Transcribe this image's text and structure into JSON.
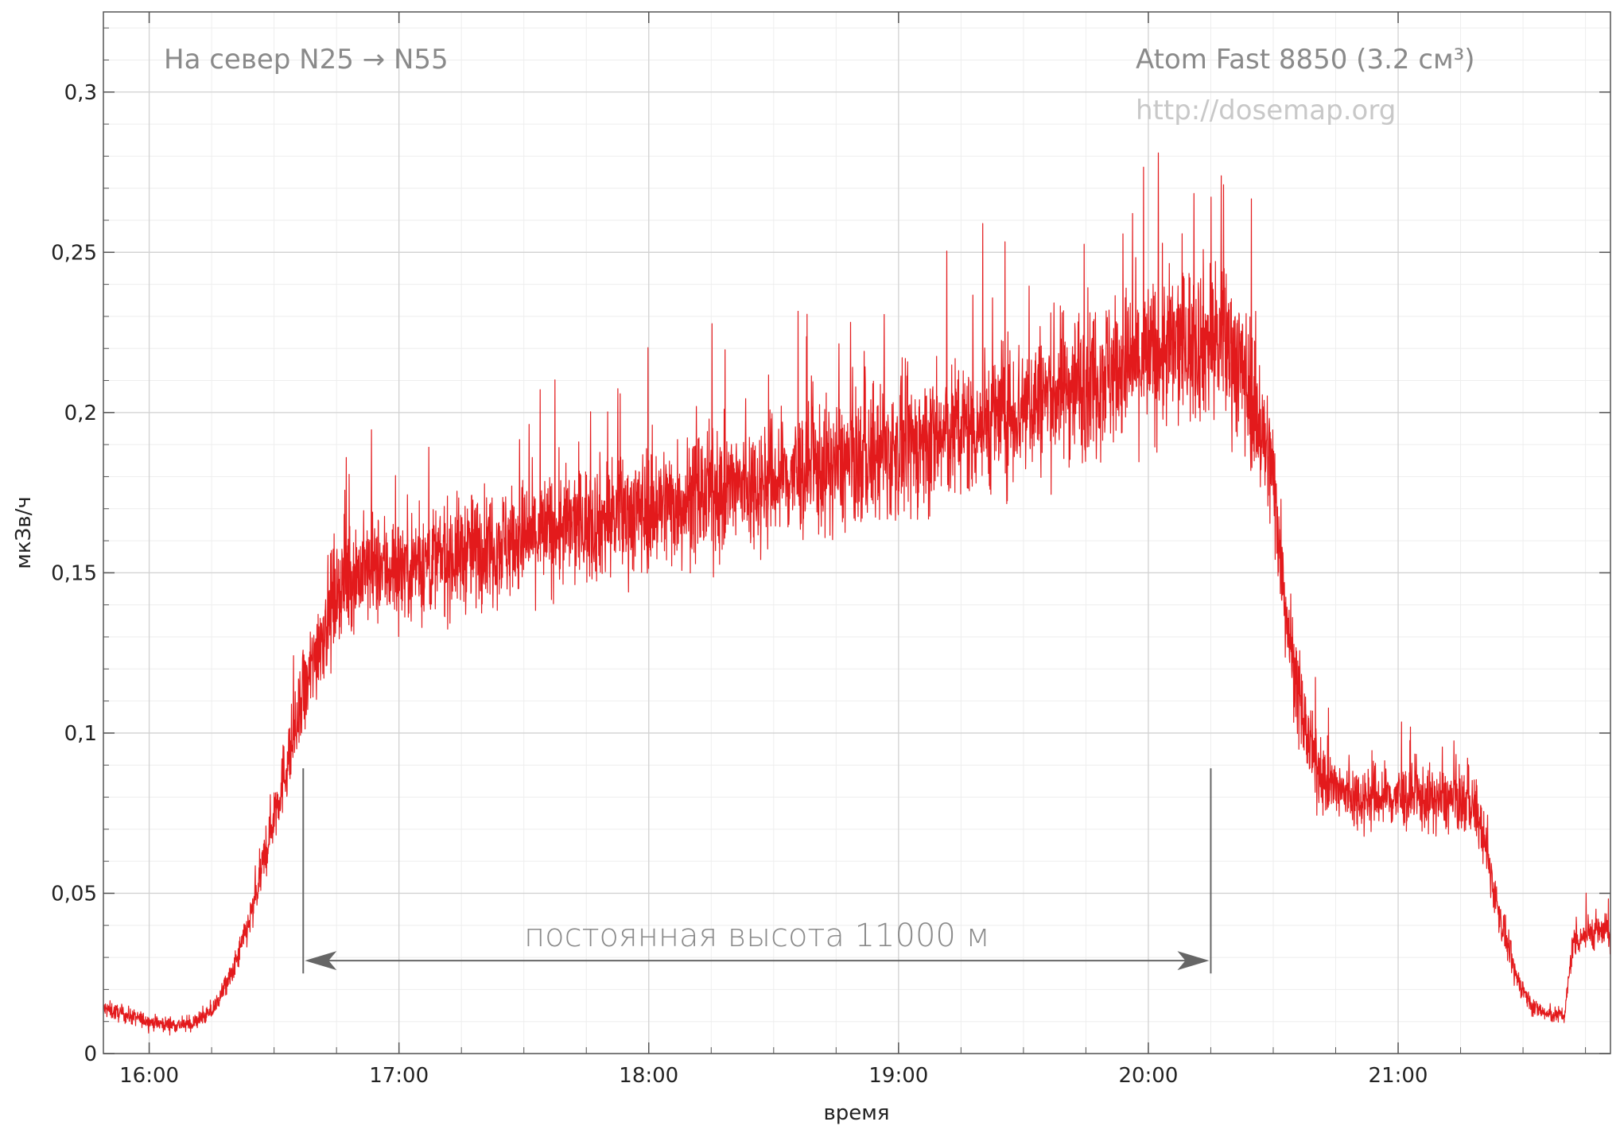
{
  "chart_data": {
    "type": "line",
    "title_left": "На север N25 → N55",
    "title_right": "Atom Fast 8850 (3.2 см³)",
    "watermark": "http://dosemap.org",
    "xlabel": "время",
    "ylabel": "мкЗв/ч",
    "x_ticks": [
      "16:00",
      "17:00",
      "18:00",
      "19:00",
      "20:00",
      "21:00"
    ],
    "y_ticks": [
      "0",
      "0,05",
      "0,1",
      "0,15",
      "0,2",
      "0,25",
      "0,3"
    ],
    "xlim": [
      "15:49",
      "21:51"
    ],
    "ylim": [
      0,
      0.325
    ],
    "grid": true,
    "series_color": "#e31a1c",
    "series": [
      {
        "x": [
          "15:49",
          "16:00",
          "16:05",
          "16:10",
          "16:15",
          "16:20",
          "16:25",
          "16:30",
          "16:35",
          "16:40",
          "16:45",
          "16:50",
          "17:00",
          "17:10",
          "17:20",
          "17:30",
          "17:40",
          "17:50",
          "18:00",
          "18:10",
          "18:20",
          "18:30",
          "18:40",
          "18:50",
          "19:00",
          "19:10",
          "19:20",
          "19:30",
          "19:40",
          "19:50",
          "20:00",
          "20:10",
          "20:15",
          "20:20",
          "20:25",
          "20:30",
          "20:33",
          "20:36",
          "20:40",
          "20:45",
          "20:50",
          "21:00",
          "21:10",
          "21:15",
          "21:18",
          "21:20",
          "21:24",
          "21:28",
          "21:32",
          "21:36",
          "21:40",
          "21:42",
          "21:46",
          "21:51"
        ],
        "values": [
          0.014,
          0.01,
          0.009,
          0.009,
          0.013,
          0.025,
          0.045,
          0.075,
          0.1,
          0.125,
          0.145,
          0.15,
          0.152,
          0.154,
          0.158,
          0.161,
          0.164,
          0.167,
          0.17,
          0.173,
          0.176,
          0.179,
          0.182,
          0.185,
          0.188,
          0.192,
          0.197,
          0.202,
          0.208,
          0.213,
          0.217,
          0.222,
          0.223,
          0.22,
          0.205,
          0.18,
          0.14,
          0.11,
          0.09,
          0.082,
          0.08,
          0.08,
          0.079,
          0.079,
          0.078,
          0.07,
          0.045,
          0.025,
          0.015,
          0.012,
          0.012,
          0.035,
          0.038,
          0.038
        ]
      }
    ],
    "annotation": {
      "text": "постоянная высота 11000 м",
      "x_start": "16:37",
      "x_end": "20:15",
      "y": 0.029,
      "marker_top": 0.089,
      "marker_bottom": 0.025
    }
  }
}
